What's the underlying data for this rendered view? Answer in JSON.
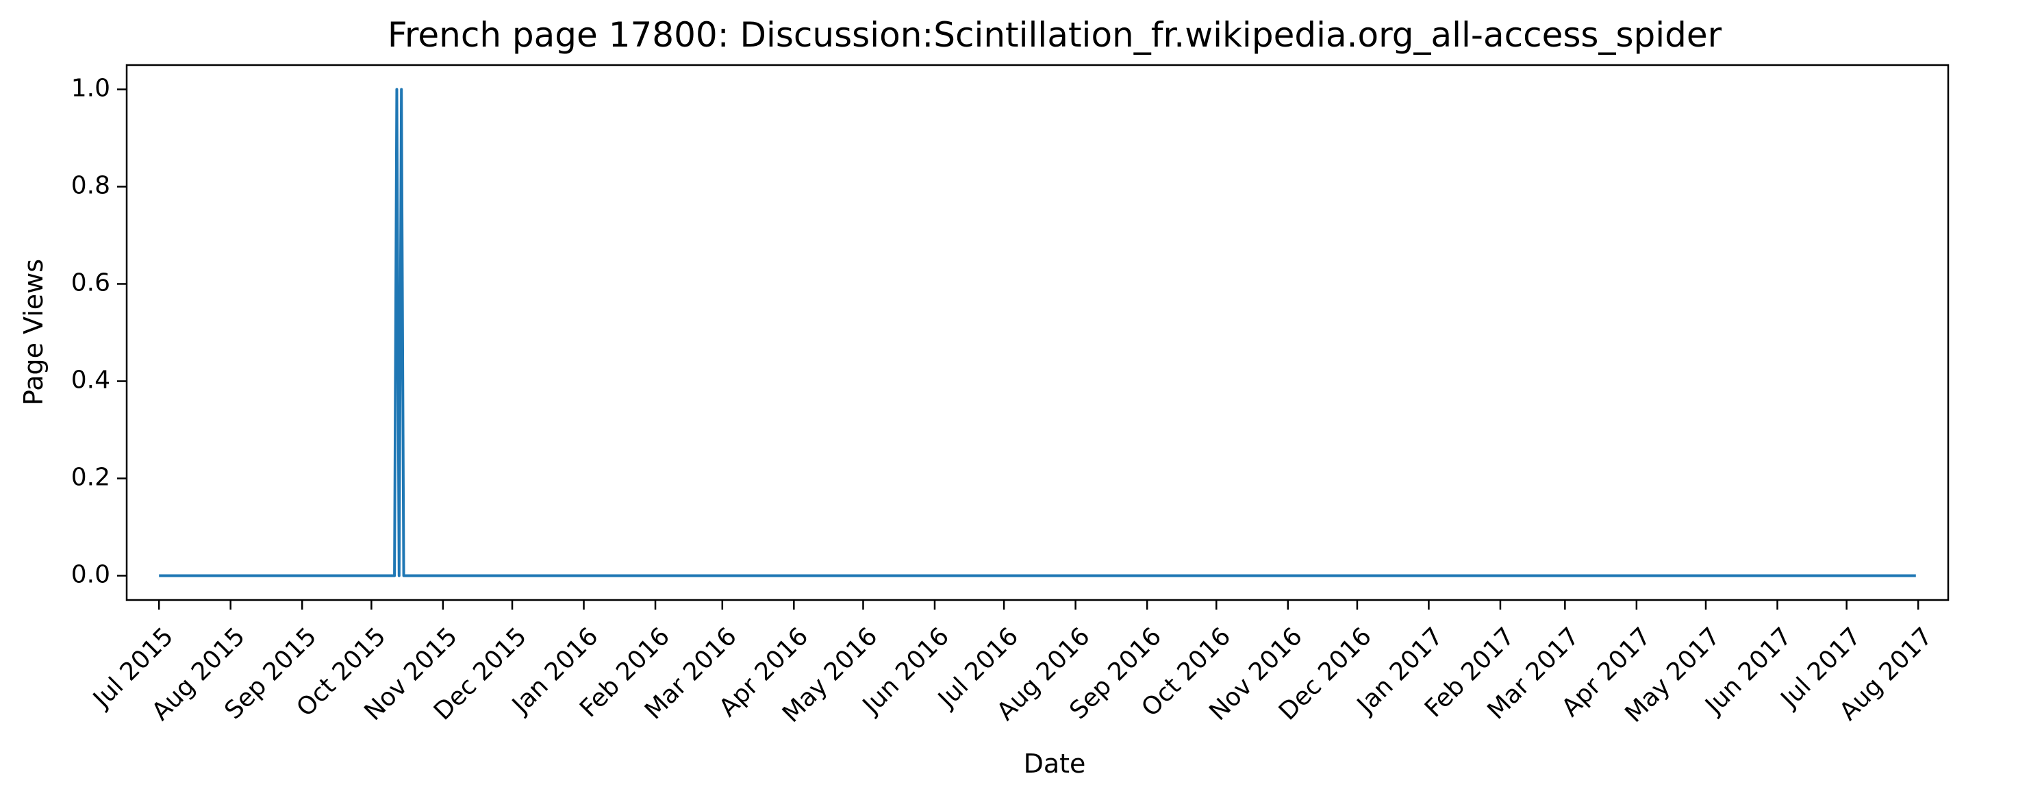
{
  "chart_data": {
    "type": "line",
    "title": "French page 17800: Discussion:Scintillation_fr.wikipedia.org_all-access_spider",
    "xlabel": "Date",
    "ylabel": "Page Views",
    "xlim": [
      "2015-06-17",
      "2017-08-14"
    ],
    "ylim": [
      -0.05,
      1.05
    ],
    "grid": false,
    "y_ticks": [
      {
        "value": 0.0,
        "label": "0.0"
      },
      {
        "value": 0.2,
        "label": "0.2"
      },
      {
        "value": 0.4,
        "label": "0.4"
      },
      {
        "value": 0.6,
        "label": "0.6"
      },
      {
        "value": 0.8,
        "label": "0.8"
      },
      {
        "value": 1.0,
        "label": "1.0"
      }
    ],
    "x_ticks": [
      {
        "date": "2015-07-01",
        "label": "Jul 2015"
      },
      {
        "date": "2015-08-01",
        "label": "Aug 2015"
      },
      {
        "date": "2015-09-01",
        "label": "Sep 2015"
      },
      {
        "date": "2015-10-01",
        "label": "Oct 2015"
      },
      {
        "date": "2015-11-01",
        "label": "Nov 2015"
      },
      {
        "date": "2015-12-01",
        "label": "Dec 2015"
      },
      {
        "date": "2016-01-01",
        "label": "Jan 2016"
      },
      {
        "date": "2016-02-01",
        "label": "Feb 2016"
      },
      {
        "date": "2016-03-01",
        "label": "Mar 2016"
      },
      {
        "date": "2016-04-01",
        "label": "Apr 2016"
      },
      {
        "date": "2016-05-01",
        "label": "May 2016"
      },
      {
        "date": "2016-06-01",
        "label": "Jun 2016"
      },
      {
        "date": "2016-07-01",
        "label": "Jul 2016"
      },
      {
        "date": "2016-08-01",
        "label": "Aug 2016"
      },
      {
        "date": "2016-09-01",
        "label": "Sep 2016"
      },
      {
        "date": "2016-10-01",
        "label": "Oct 2016"
      },
      {
        "date": "2016-11-01",
        "label": "Nov 2016"
      },
      {
        "date": "2016-12-01",
        "label": "Dec 2016"
      },
      {
        "date": "2017-01-01",
        "label": "Jan 2017"
      },
      {
        "date": "2017-02-01",
        "label": "Feb 2017"
      },
      {
        "date": "2017-03-01",
        "label": "Mar 2017"
      },
      {
        "date": "2017-04-01",
        "label": "Apr 2017"
      },
      {
        "date": "2017-05-01",
        "label": "May 2017"
      },
      {
        "date": "2017-06-01",
        "label": "Jun 2017"
      },
      {
        "date": "2017-07-01",
        "label": "Jul 2017"
      },
      {
        "date": "2017-08-01",
        "label": "Aug 2017"
      }
    ],
    "series": [
      {
        "color": "#1f77b4",
        "points": [
          {
            "x": "2015-07-01",
            "y": 0
          },
          {
            "x": "2015-10-11",
            "y": 0
          },
          {
            "x": "2015-10-12",
            "y": 1
          },
          {
            "x": "2015-10-13",
            "y": 0
          },
          {
            "x": "2015-10-14",
            "y": 1
          },
          {
            "x": "2015-10-15",
            "y": 0
          },
          {
            "x": "2017-07-31",
            "y": 0
          }
        ]
      }
    ]
  }
}
